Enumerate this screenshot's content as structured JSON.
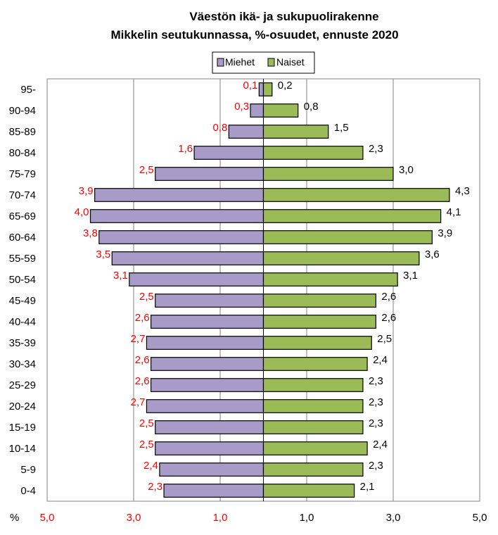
{
  "chart_data": {
    "type": "bar",
    "orientation": "horizontal-population-pyramid",
    "title_line1": "Väestön ikä- ja sukupuolirakenne",
    "title_line2": "Mikkelin seutukunnassa, %-osuudet,  ennuste 2020",
    "categories": [
      "95-",
      "90-94",
      "85-89",
      "80-84",
      "75-79",
      "70-74",
      "65-69",
      "60-64",
      "55-59",
      "50-54",
      "45-49",
      "40-44",
      "35-39",
      "30-34",
      "25-29",
      "20-24",
      "15-19",
      "10-14",
      "5-9",
      "0-4"
    ],
    "series": [
      {
        "name": "Miehet",
        "color": "#a99bc8",
        "values": [
          0.1,
          0.3,
          0.8,
          1.6,
          2.5,
          3.9,
          4.0,
          3.8,
          3.5,
          3.1,
          2.5,
          2.6,
          2.7,
          2.6,
          2.6,
          2.7,
          2.5,
          2.5,
          2.4,
          2.3
        ],
        "labels": [
          "0,1",
          "0,3",
          "0,8",
          "1,6",
          "2,5",
          "3,9",
          "4,0",
          "3,8",
          "3,5",
          "3,1",
          "2,5",
          "2,6",
          "2,7",
          "2,6",
          "2,6",
          "2,7",
          "2,5",
          "2,5",
          "2,4",
          "2,3"
        ]
      },
      {
        "name": "Naiset",
        "color": "#9bbb59",
        "values": [
          0.2,
          0.8,
          1.5,
          2.3,
          3.0,
          4.3,
          4.1,
          3.9,
          3.6,
          3.1,
          2.6,
          2.6,
          2.5,
          2.4,
          2.3,
          2.3,
          2.3,
          2.4,
          2.3,
          2.1
        ],
        "labels": [
          "0,2",
          "0,8",
          "1,5",
          "2,3",
          "3,0",
          "4,3",
          "4,1",
          "3,9",
          "3,6",
          "3,1",
          "2,6",
          "2,6",
          "2,5",
          "2,4",
          "2,3",
          "2,3",
          "2,3",
          "2,4",
          "2,3",
          "2,1"
        ]
      }
    ],
    "xlim": [
      -5,
      5
    ],
    "x_ticks": [
      -5,
      -3,
      -1,
      1,
      3,
      5
    ],
    "x_tick_labels": [
      "5,0",
      "3,0",
      "1,0",
      "1,0",
      "3,0",
      "5,0"
    ],
    "x_unit_label": "%",
    "grid": "vertical",
    "legend_position": "top-center"
  }
}
